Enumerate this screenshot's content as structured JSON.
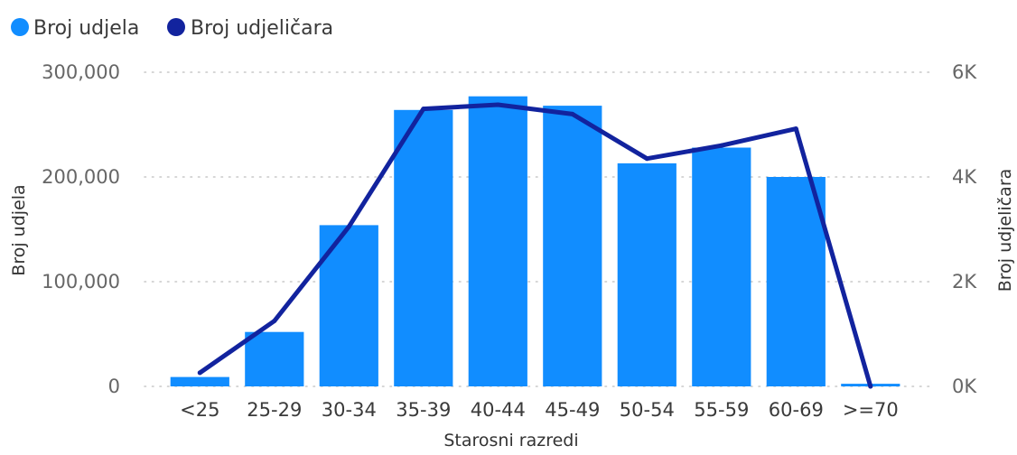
{
  "chart_data": {
    "type": "bar",
    "categories": [
      "<25",
      "25-29",
      "30-34",
      "35-39",
      "40-44",
      "45-49",
      "50-54",
      "55-59",
      "60-69",
      ">=70"
    ],
    "series": [
      {
        "name": "Broj udjela",
        "type": "bar",
        "axis": "left",
        "color": "#118DFF",
        "values": [
          9000,
          52000,
          154000,
          264000,
          277000,
          268000,
          213000,
          228000,
          200000,
          2500
        ]
      },
      {
        "name": "Broj udjeličara",
        "type": "line",
        "axis": "right",
        "color": "#12239E",
        "values": [
          260,
          1250,
          3050,
          5300,
          5380,
          5200,
          4350,
          4600,
          4920,
          0
        ]
      }
    ],
    "xlabel": "Starosni razredi",
    "ylabel": "Broj udjela",
    "y2label": "Broj udjeličara",
    "ylim": [
      0,
      300000
    ],
    "y2lim": [
      0,
      6000
    ],
    "left_ticks": [
      "0",
      "100,000",
      "200,000",
      "300,000"
    ],
    "right_ticks": [
      "0K",
      "2K",
      "4K",
      "6K"
    ],
    "grid": true,
    "legend_position": "top-left"
  }
}
